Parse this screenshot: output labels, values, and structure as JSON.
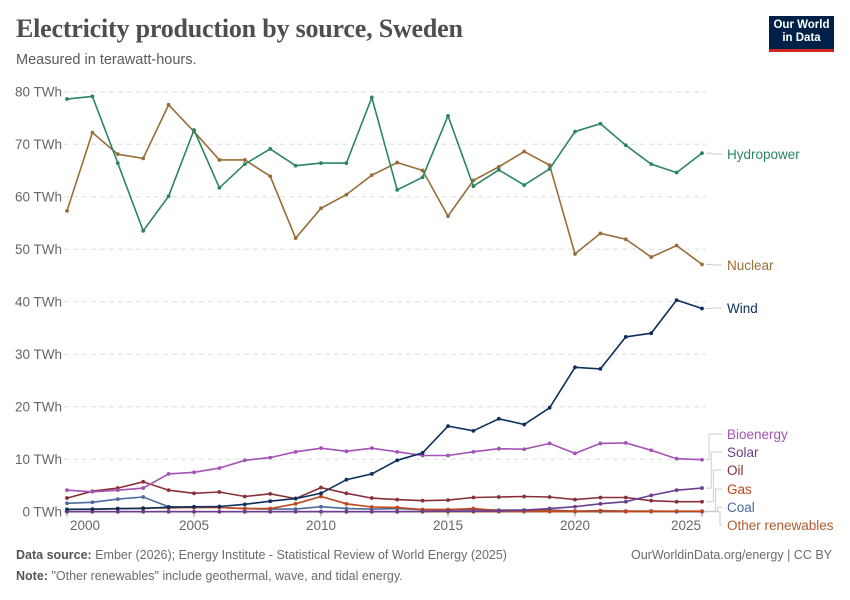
{
  "header": {
    "title": "Electricity production by source, Sweden",
    "subtitle": "Measured in terawatt-hours.",
    "logo_text": "Our World in Data"
  },
  "footer": {
    "source_label": "Data source:",
    "source_text": "Ember (2026); Energy Institute - Statistical Review of World Energy (2025)",
    "note_label": "Note:",
    "note_text": "\"Other renewables\" include geothermal, wave, and tidal energy.",
    "credit": "OurWorldinData.org/energy | CC BY"
  },
  "chart_data": {
    "type": "line",
    "title": "Electricity production by source, Sweden",
    "ylabel": "",
    "xlabel": "",
    "ylim": [
      0,
      80
    ],
    "yticks": [
      0,
      10,
      20,
      30,
      40,
      50,
      60,
      70,
      80
    ],
    "ytick_labels": [
      "0 TWh",
      "10 TWh",
      "20 TWh",
      "30 TWh",
      "40 TWh",
      "50 TWh",
      "60 TWh",
      "70 TWh",
      "80 TWh"
    ],
    "xticks": [
      2000,
      2005,
      2010,
      2015,
      2020,
      2025
    ],
    "xtick_labels": [
      "2000",
      "2005",
      "2010",
      "2015",
      "2020",
      "2025"
    ],
    "grid": "horizontal dashed",
    "legend": "right, inline labels",
    "x": [
      2000,
      2001,
      2002,
      2003,
      2004,
      2005,
      2006,
      2007,
      2008,
      2009,
      2010,
      2011,
      2012,
      2013,
      2014,
      2015,
      2016,
      2017,
      2018,
      2019,
      2020,
      2021,
      2022,
      2023,
      2024,
      2025
    ],
    "series": [
      {
        "name": "Hydropower",
        "color": "#2c8465",
        "values": [
          78.6,
          79.1,
          66.4,
          53.5,
          60.1,
          72.7,
          61.7,
          66.2,
          69.1,
          65.9,
          66.4,
          66.4,
          78.9,
          61.3,
          63.7,
          75.4,
          62.0,
          65.1,
          62.2,
          65.3,
          72.4,
          73.9,
          69.8,
          66.2,
          64.6,
          68.3
        ]
      },
      {
        "name": "Nuclear",
        "color": "#996d39",
        "values": [
          57.3,
          72.2,
          68.1,
          67.3,
          77.5,
          72.4,
          67.0,
          67.0,
          63.9,
          52.1,
          57.8,
          60.4,
          64.1,
          66.5,
          65.0,
          56.3,
          63.1,
          65.7,
          68.6,
          66.0,
          49.1,
          53.0,
          51.9,
          48.5,
          50.7,
          47.1
        ]
      },
      {
        "name": "Wind",
        "color": "#0b2e5c",
        "values": [
          0.45,
          0.48,
          0.6,
          0.63,
          0.86,
          0.94,
          0.99,
          1.4,
          2.0,
          2.5,
          3.5,
          6.1,
          7.2,
          9.8,
          11.2,
          16.3,
          15.4,
          17.7,
          16.6,
          19.8,
          27.5,
          27.2,
          33.3,
          34.0,
          40.3,
          38.7
        ]
      },
      {
        "name": "Bioenergy",
        "color": "#a552b5",
        "values": [
          4.1,
          3.8,
          4.1,
          4.5,
          7.2,
          7.5,
          8.3,
          9.8,
          10.3,
          11.4,
          12.1,
          11.5,
          12.1,
          11.4,
          10.7,
          10.7,
          11.4,
          12.0,
          11.9,
          13.0,
          11.1,
          13.0,
          13.1,
          11.7,
          10.1,
          9.9
        ]
      },
      {
        "name": "Solar",
        "color": "#6c3e91",
        "values": [
          0,
          0,
          0,
          0,
          0,
          0,
          0,
          0,
          0,
          0,
          0,
          0,
          0,
          0,
          0.05,
          0.1,
          0.1,
          0.15,
          0.3,
          0.6,
          0.95,
          1.5,
          1.9,
          3.1,
          4.1,
          4.5
        ]
      },
      {
        "name": "Oil",
        "color": "#883039",
        "values": [
          2.6,
          3.9,
          4.5,
          5.7,
          4.1,
          3.5,
          3.75,
          2.9,
          3.4,
          2.5,
          4.6,
          3.5,
          2.6,
          2.3,
          2.1,
          2.2,
          2.7,
          2.8,
          2.9,
          2.8,
          2.3,
          2.7,
          2.7,
          2.1,
          1.9,
          1.9
        ]
      },
      {
        "name": "Gas",
        "color": "#c0461f",
        "values": [
          0.45,
          0.45,
          0.55,
          0.7,
          0.7,
          0.8,
          0.8,
          0.6,
          0.6,
          1.5,
          2.9,
          1.5,
          0.9,
          0.8,
          0.4,
          0.4,
          0.6,
          0.2,
          0.2,
          0.2,
          0.1,
          0.2,
          0.1,
          0.1,
          0.1,
          0.1
        ]
      },
      {
        "name": "Coal",
        "color": "#4c6a9c",
        "values": [
          1.6,
          1.8,
          2.4,
          2.8,
          0.95,
          0.8,
          0.8,
          0.6,
          0.5,
          0.5,
          0.95,
          0.6,
          0.5,
          0.6,
          0.4,
          0.4,
          0.4,
          0.3,
          0.3,
          0.3,
          0.1,
          0.1,
          0.1,
          0.1,
          0.05,
          0.05
        ]
      },
      {
        "name": "Other renewables",
        "color": "#b05b2e",
        "values": [
          0,
          0,
          0,
          0,
          0,
          0,
          0,
          0,
          0,
          0,
          0,
          0,
          0,
          0,
          0,
          0,
          0,
          0,
          0,
          0,
          0,
          0,
          0,
          0,
          0,
          0
        ]
      }
    ]
  }
}
